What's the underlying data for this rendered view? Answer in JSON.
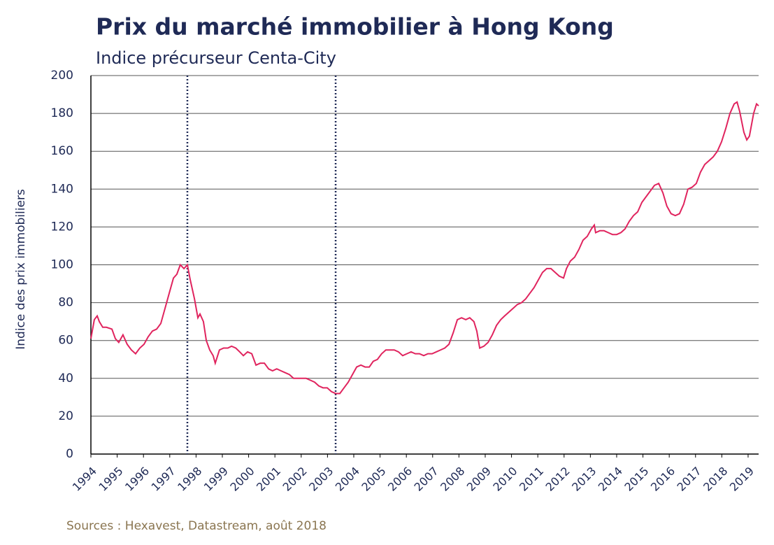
{
  "chart_data": {
    "type": "line",
    "title": "Prix du marché immobilier à Hong Kong",
    "subtitle": "Indice précurseur Centa-City",
    "y_label": "Indice des prix immobiliers",
    "source": "Sources : Hexavest, Datastream, août 2018",
    "xlim": [
      1994,
      2019.4
    ],
    "xticks": [
      1994,
      1995,
      1996,
      1997,
      1998,
      1999,
      2000,
      2001,
      2002,
      2003,
      2004,
      2005,
      2006,
      2007,
      2008,
      2009,
      2010,
      2011,
      2012,
      2013,
      2014,
      2015,
      2016,
      2017,
      2018,
      2019
    ],
    "ylim": [
      0,
      200
    ],
    "yticks": [
      0,
      20,
      40,
      60,
      80,
      100,
      120,
      140,
      160,
      180,
      200
    ],
    "grid": true,
    "vlines": [
      1997.67,
      2003.31
    ],
    "x": [
      1994.0,
      1994.13,
      1994.24,
      1994.32,
      1994.45,
      1994.59,
      1994.8,
      1994.93,
      1995.06,
      1995.22,
      1995.38,
      1995.54,
      1995.7,
      1995.86,
      1996.02,
      1996.18,
      1996.34,
      1996.5,
      1996.66,
      1996.82,
      1996.98,
      1997.14,
      1997.27,
      1997.4,
      1997.54,
      1997.67,
      1997.78,
      1997.94,
      1998.07,
      1998.15,
      1998.28,
      1998.39,
      1998.52,
      1998.65,
      1998.73,
      1998.89,
      1999.05,
      1999.21,
      1999.35,
      1999.51,
      1999.66,
      1999.8,
      1999.96,
      2000.12,
      2000.28,
      2000.44,
      2000.6,
      2000.76,
      2000.91,
      2001.07,
      2001.23,
      2001.39,
      2001.55,
      2001.71,
      2001.87,
      2002.03,
      2002.19,
      2002.35,
      2002.51,
      2002.67,
      2002.83,
      2002.99,
      2003.15,
      2003.31,
      2003.47,
      2003.63,
      2003.79,
      2003.95,
      2004.11,
      2004.27,
      2004.43,
      2004.59,
      2004.74,
      2004.9,
      2005.06,
      2005.22,
      2005.38,
      2005.54,
      2005.7,
      2005.86,
      2006.02,
      2006.18,
      2006.34,
      2006.5,
      2006.66,
      2006.82,
      2006.98,
      2007.14,
      2007.3,
      2007.46,
      2007.62,
      2007.78,
      2007.94,
      2008.1,
      2008.26,
      2008.41,
      2008.57,
      2008.68,
      2008.79,
      2008.95,
      2009.11,
      2009.27,
      2009.43,
      2009.59,
      2009.74,
      2009.9,
      2010.06,
      2010.22,
      2010.38,
      2010.54,
      2010.7,
      2010.86,
      2011.02,
      2011.18,
      2011.34,
      2011.5,
      2011.66,
      2011.82,
      2011.98,
      2012.09,
      2012.24,
      2012.4,
      2012.56,
      2012.72,
      2012.88,
      2013.04,
      2013.15,
      2013.2,
      2013.36,
      2013.52,
      2013.68,
      2013.84,
      2014.0,
      2014.16,
      2014.32,
      2014.48,
      2014.64,
      2014.8,
      2014.96,
      2015.12,
      2015.28,
      2015.44,
      2015.6,
      2015.76,
      2015.91,
      2016.07,
      2016.23,
      2016.39,
      2016.55,
      2016.71,
      2016.87,
      2017.03,
      2017.19,
      2017.35,
      2017.51,
      2017.67,
      2017.83,
      2017.99,
      2018.15,
      2018.31,
      2018.47,
      2018.58,
      2018.68,
      2018.84,
      2018.95,
      2019.05,
      2019.21,
      2019.32,
      2019.4
    ],
    "series": [
      {
        "name": "Indice Centa-City",
        "color": "#e0245e",
        "values": [
          61,
          71,
          73,
          70,
          67,
          67,
          66,
          61,
          59,
          63,
          58,
          55,
          53,
          56,
          58,
          62,
          65,
          66,
          69,
          77,
          85,
          93,
          95,
          100,
          98,
          100,
          92,
          82,
          72,
          74,
          70,
          60,
          55,
          52,
          48,
          55,
          56,
          56,
          57,
          56,
          54,
          52,
          54,
          53,
          47,
          48,
          48,
          45,
          44,
          45,
          44,
          43,
          42,
          40,
          40,
          40,
          40,
          39,
          38,
          36,
          35,
          35,
          33,
          32,
          32,
          35,
          38,
          42,
          46,
          47,
          46,
          46,
          49,
          50,
          53,
          55,
          55,
          55,
          54,
          52,
          53,
          54,
          53,
          53,
          52,
          53,
          53,
          54,
          55,
          56,
          58,
          64,
          71,
          72,
          71,
          72,
          70,
          65,
          56,
          57,
          59,
          63,
          68,
          71,
          73,
          75,
          77,
          79,
          80,
          82,
          85,
          88,
          92,
          96,
          98,
          98,
          96,
          94,
          93,
          98,
          102,
          104,
          108,
          113,
          115,
          119,
          121,
          117,
          118,
          118,
          117,
          116,
          116,
          117,
          119,
          123,
          126,
          128,
          133,
          136,
          139,
          142,
          143,
          138,
          131,
          127,
          126,
          127,
          132,
          140,
          141,
          143,
          149,
          153,
          155,
          157,
          160,
          165,
          172,
          180,
          185,
          186,
          181,
          170,
          166,
          168,
          180,
          185,
          184
        ]
      }
    ]
  }
}
